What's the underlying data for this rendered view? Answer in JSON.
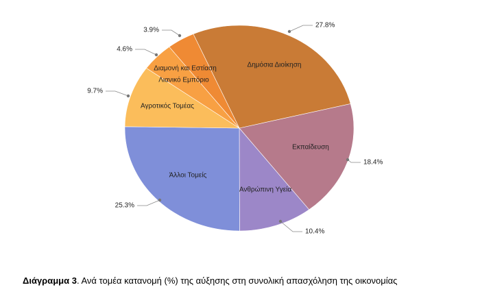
{
  "chart_data": {
    "type": "pie",
    "title_prefix": "Διάγραμμα 3",
    "title": ". Ανά τομέα κατανομή (%) της αύξησης στη συνολική απασχόληση της οικονομίας",
    "categories": [
      "Δημόσια Διοίκηση",
      "Εκπαίδευση",
      "Ανθρώπινη Υγεία",
      "Άλλοι Τομείς",
      "Αγροτικός Τομέας",
      "Λιανικό Εμπόριο",
      "Διαμονή και Εστίαση"
    ],
    "values": [
      27.8,
      18.4,
      10.4,
      25.3,
      9.7,
      4.6,
      3.9
    ],
    "value_labels": [
      "27.8%",
      "18.4%",
      "10.4%",
      "25.3%",
      "9.7%",
      "4.6%",
      "3.9%"
    ],
    "colors": [
      "#c97b36",
      "#b67a8b",
      "#9c87c8",
      "#7f8fd9",
      "#fbbd5b",
      "#f8a043",
      "#ef8a34"
    ]
  }
}
